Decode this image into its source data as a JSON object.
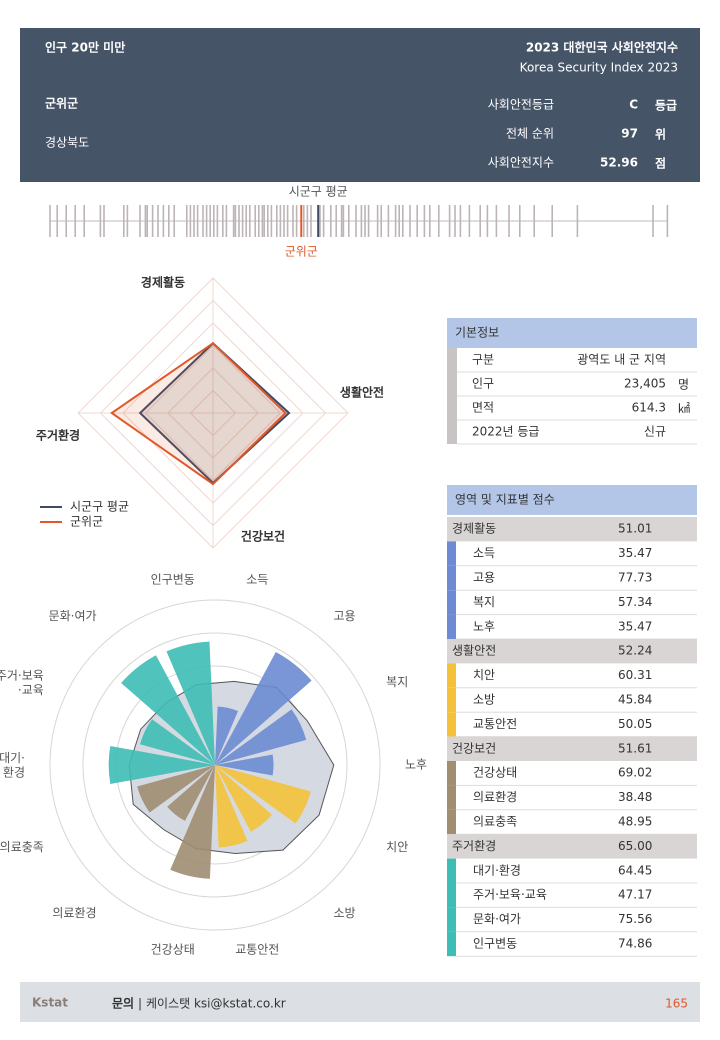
{
  "header": {
    "category": "인구 20만 미만",
    "report_title": "2023 대한민국 사회안전지수",
    "report_subtitle": "Korea Security Index 2023",
    "region": "군위군",
    "province": "경상북도",
    "summary": [
      {
        "label": "사회안전등급",
        "value": "C",
        "unit": "등급"
      },
      {
        "label": "전체 순위",
        "value": 97,
        "unit": "위"
      },
      {
        "label": "사회안전지수",
        "value": 52.96,
        "unit": "점"
      }
    ]
  },
  "basic_info": {
    "title": "기본정보",
    "rows": [
      {
        "label": "구분",
        "value": "광역도 내 군 지역"
      },
      {
        "label": "인구",
        "value": "23,405",
        "unit": "명"
      },
      {
        "label": "면적",
        "value": "614.3",
        "unit": "㎢"
      },
      {
        "label": "2022년 등급",
        "value": "신규"
      }
    ]
  },
  "scores": {
    "title": "영역 및 지표별 점수",
    "groups": [
      {
        "name": "경제활동",
        "score": "51.01",
        "color": "#6c8bd3",
        "items": [
          {
            "name": "소득",
            "score": "35.47"
          },
          {
            "name": "고용",
            "score": "77.73"
          },
          {
            "name": "복지",
            "score": "57.34"
          },
          {
            "name": "노후",
            "score": "35.47"
          }
        ]
      },
      {
        "name": "생활안전",
        "score": "52.24",
        "color": "#f3c23a",
        "items": [
          {
            "name": "치안",
            "score": "60.31"
          },
          {
            "name": "소방",
            "score": "45.84"
          },
          {
            "name": "교통안전",
            "score": "50.05"
          }
        ]
      },
      {
        "name": "건강보건",
        "score": "51.61",
        "color": "#a08d72",
        "items": [
          {
            "name": "건강상태",
            "score": "69.02"
          },
          {
            "name": "의료환경",
            "score": "38.48"
          },
          {
            "name": "의료충족",
            "score": "48.95"
          }
        ]
      },
      {
        "name": "주거환경",
        "score": "65.00",
        "color": "#3dbdb5",
        "items": [
          {
            "name": "대기·환경",
            "score": "64.45"
          },
          {
            "name": "주거·보육·교육",
            "score": "47.17"
          },
          {
            "name": "문화·여가",
            "score": "75.56"
          },
          {
            "name": "인구변동",
            "score": "74.86"
          }
        ]
      }
    ]
  },
  "chart_data": [
    {
      "type": "strip",
      "xlim": [
        38.5,
        73.8
      ],
      "color": "#bdb4b6",
      "values": [
        39.0,
        39.4,
        39.9,
        40.4,
        40.9,
        41.8,
        42.0,
        43.1,
        43.3,
        44.0,
        44.3,
        44.4,
        44.7,
        45.0,
        45.3,
        45.6,
        45.9,
        46.6,
        46.8,
        47.0,
        47.2,
        47.5,
        47.7,
        47.9,
        48.1,
        48.3,
        48.6,
        48.8,
        49.2,
        49.3,
        49.5,
        49.7,
        49.9,
        50.1,
        50.4,
        50.6,
        50.8,
        50.9,
        51.1,
        51.3,
        51.6,
        51.8,
        52.0,
        52.2,
        52.5,
        52.7,
        53.1,
        53.3,
        53.5,
        54.0,
        54.2,
        54.6,
        54.9,
        55.2,
        55.3,
        55.6,
        56.0,
        56.3,
        56.5,
        56.7,
        57.2,
        57.4,
        57.8,
        58.2,
        58.4,
        58.6,
        59.0,
        59.4,
        59.8,
        60.1,
        60.6,
        61.2,
        61.5,
        61.8,
        62.3,
        62.9,
        63.3,
        63.8,
        64.5,
        65.1,
        65.9,
        66.9,
        68.3,
        72.5,
        73.3
      ],
      "markers": [
        {
          "name": "시군구 평균",
          "value": 53.9,
          "color": "#3f4a63"
        },
        {
          "name": "군위군",
          "value": 52.96,
          "color": "#e0582a"
        }
      ]
    },
    {
      "type": "radar",
      "categories": [
        "경제활동",
        "생활안전",
        "건강보건",
        "주거환경"
      ],
      "rlim": [
        20,
        80
      ],
      "rticks": [
        30,
        40,
        50,
        60,
        70,
        80
      ],
      "series": [
        {
          "name": "시군구 평균",
          "color": "#3f4a63",
          "values": [
            51.0,
            53.8,
            51.1,
            52.4
          ]
        },
        {
          "name": "군위군",
          "color": "#e0582a",
          "values": [
            51.01,
            52.24,
            51.61,
            65.0
          ]
        }
      ]
    },
    {
      "type": "polar-bar",
      "rlim": [
        0,
        100
      ],
      "rticks": [
        20,
        40,
        60,
        80,
        100
      ],
      "categories": [
        "소득",
        "고용",
        "복지",
        "노후",
        "치안",
        "소방",
        "교통안전",
        "건강상태",
        "의료환경",
        "의료충족",
        "대기·\n환경",
        "주거·보육\n·교육",
        "문화·여가",
        "인구변동"
      ],
      "values": [
        35.47,
        77.73,
        57.34,
        35.47,
        60.31,
        45.84,
        50.05,
        69.02,
        38.48,
        48.95,
        64.45,
        47.17,
        75.56,
        74.86
      ],
      "colors": [
        "#6c8bd3",
        "#6c8bd3",
        "#6c8bd3",
        "#6c8bd3",
        "#f3c23a",
        "#f3c23a",
        "#f3c23a",
        "#a08d72",
        "#a08d72",
        "#a08d72",
        "#3dbdb5",
        "#3dbdb5",
        "#3dbdb5",
        "#3dbdb5"
      ],
      "background_values": [
        52,
        60,
        62,
        72,
        70,
        66,
        55,
        52,
        50,
        55,
        52,
        50,
        48,
        50
      ],
      "background_color": "#d5d9e2"
    }
  ],
  "footer": {
    "logo": "Kstat",
    "contact_label": "문의",
    "contact": "케이스탯 ksi@kstat.co.kr",
    "page": 165
  }
}
